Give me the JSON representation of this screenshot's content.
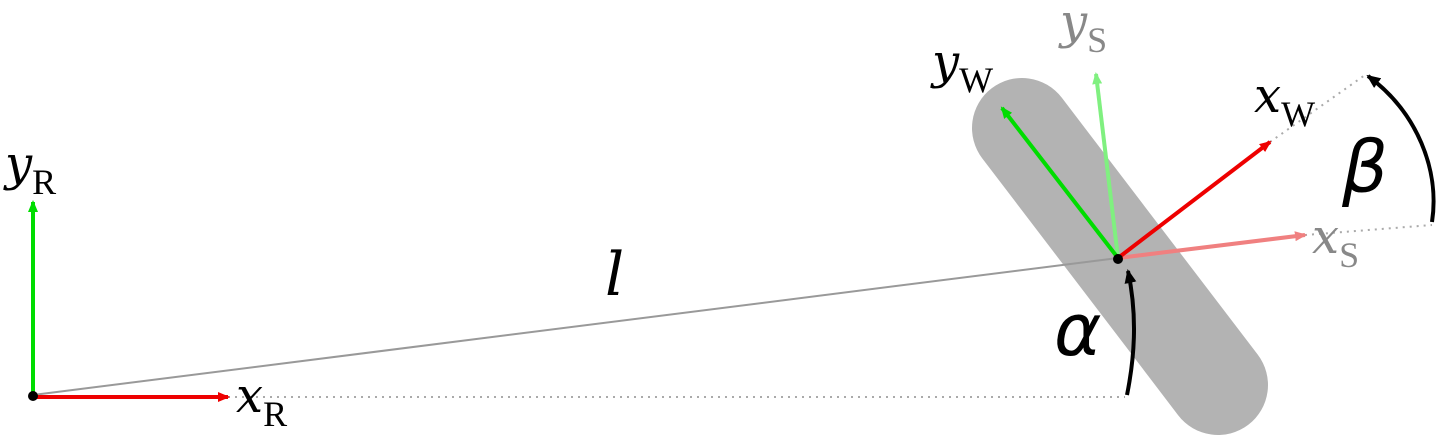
{
  "labels": {
    "xR": {
      "sym": "x",
      "sub": "R"
    },
    "yR": {
      "sym": "y",
      "sub": "R"
    },
    "xW": {
      "sym": "x",
      "sub": "W"
    },
    "yW": {
      "sym": "y",
      "sub": "W"
    },
    "xS": {
      "sym": "x",
      "sub": "S"
    },
    "yS": {
      "sym": "y",
      "sub": "S"
    },
    "length": "l",
    "alpha": "α",
    "beta": "β"
  },
  "colors": {
    "x_axis": "#ee0000",
    "y_axis": "#00dd00",
    "x_axis_faded": "#f08080",
    "y_axis_faded": "#80f080",
    "wheel": "#b3b3b3",
    "line": "#999999",
    "dotted": "#aaaaaa",
    "arc": "#000000",
    "faded_text": "#888888",
    "text": "#000000"
  }
}
